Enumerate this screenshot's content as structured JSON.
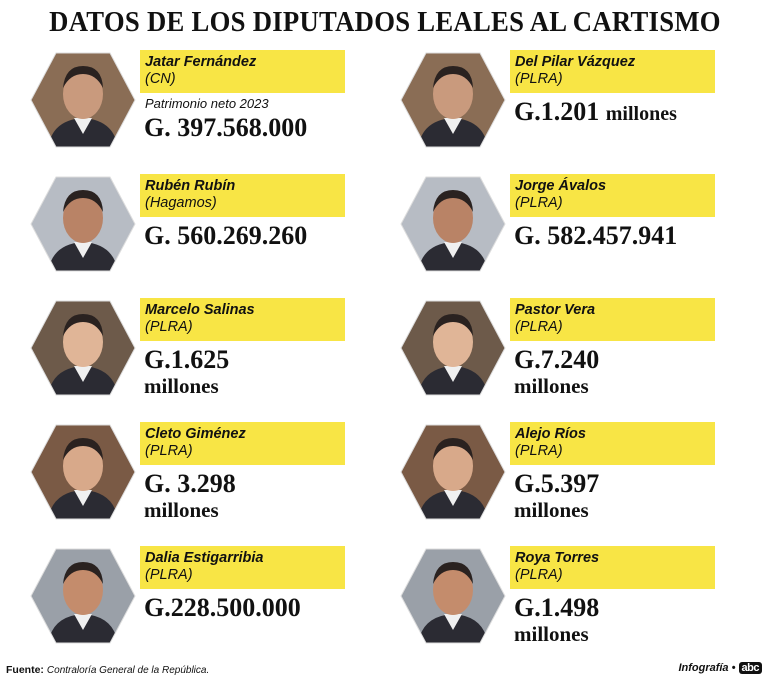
{
  "title": "DATOS DE LOS DIPUTADOS LEALES AL CARTISMO",
  "items": [
    {
      "name": "Jatar Fernández",
      "party": "(CN)",
      "note": "Patrimonio neto 2023",
      "amount": "G. 397.568.000"
    },
    {
      "name": "Rubén Rubín",
      "party": "(Hagamos)",
      "amount": "G. 560.269.260"
    },
    {
      "name": "Marcelo Salinas",
      "party": "(PLRA)",
      "amount": "G.1.625",
      "unit": "millones"
    },
    {
      "name": "Cleto Giménez",
      "party": "(PLRA)",
      "amount": "G. 3.298",
      "unit": "millones"
    },
    {
      "name": "Dalia Estigarribia",
      "party": "(PLRA)",
      "amount": "G.228.500.000"
    },
    {
      "name": "Del Pilar Vázquez",
      "party": "(PLRA)",
      "amount": "G.1.201",
      "unit": "millones"
    },
    {
      "name": "Jorge Ávalos",
      "party": "(PLRA)",
      "amount": "G. 582.457.941"
    },
    {
      "name": "Pastor Vera",
      "party": "(PLRA)",
      "amount": "G.7.240",
      "unit": "millones"
    },
    {
      "name": "Alejo Ríos",
      "party": "(PLRA)",
      "amount": "G.5.397",
      "unit": "millones"
    },
    {
      "name": "Roya Torres",
      "party": "(PLRA)",
      "amount": "G.1.498",
      "unit": "millones"
    }
  ],
  "footer": {
    "source_label": "Fuente:",
    "source": "Contraloría General de la República.",
    "credit": "Infografía •",
    "logo": "abc"
  }
}
